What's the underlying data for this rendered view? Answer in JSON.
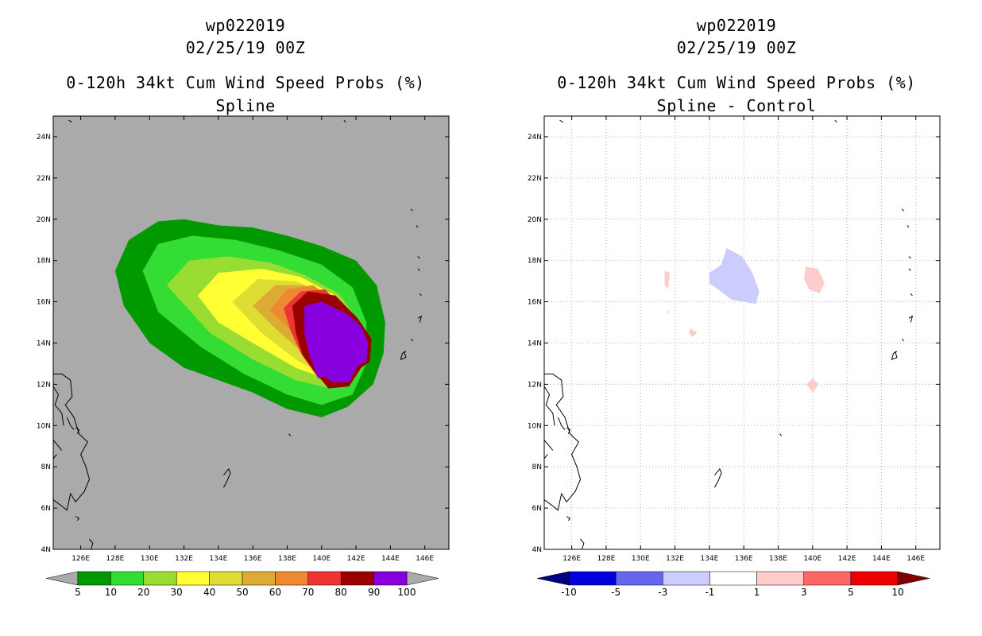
{
  "chart_data": [
    {
      "type": "heatmap",
      "id": "left",
      "title": "wp022019",
      "subtitle": "02/25/19 00Z",
      "chart_title": "0-120h 34kt Cum Wind Speed Probs (%)",
      "chart_subtitle": "Spline",
      "xlabel": "",
      "ylabel": "",
      "xlim": [
        124.4,
        147.4
      ],
      "ylim": [
        4,
        25
      ],
      "background": "#aaaaaa",
      "grid": false,
      "x_ticks": [
        126,
        128,
        130,
        132,
        134,
        136,
        138,
        140,
        142,
        144,
        146
      ],
      "x_tick_labels": [
        "126E",
        "128E",
        "130E",
        "132E",
        "134E",
        "136E",
        "138E",
        "140E",
        "142E",
        "144E",
        "146E"
      ],
      "y_ticks": [
        4,
        6,
        8,
        10,
        12,
        14,
        16,
        18,
        20,
        22,
        24
      ],
      "y_tick_labels": [
        "4N",
        "6N",
        "8N",
        "10N",
        "12N",
        "14N",
        "16N",
        "18N",
        "20N",
        "22N",
        "24N"
      ],
      "colorbar": {
        "levels": [
          "5",
          "10",
          "20",
          "30",
          "40",
          "50",
          "60",
          "70",
          "80",
          "90",
          "100"
        ],
        "colors": [
          "#009900",
          "#33dd33",
          "#99dd33",
          "#ffff33",
          "#dddd33",
          "#ddaa33",
          "#ee8833",
          "#ee3333",
          "#990000",
          "#8800dd"
        ],
        "under_color": "#aaaaaa",
        "over_color": "#aaaaaa"
      },
      "shapes": [
        {
          "level": "5",
          "color": "#009900",
          "points": [
            [
              128.0,
              17.5
            ],
            [
              128.8,
              19.0
            ],
            [
              130.5,
              19.9
            ],
            [
              132.0,
              20.0
            ],
            [
              134.0,
              19.7
            ],
            [
              136.0,
              19.6
            ],
            [
              138.0,
              19.2
            ],
            [
              140.0,
              18.7
            ],
            [
              142.0,
              18.0
            ],
            [
              143.2,
              16.8
            ],
            [
              143.7,
              15.0
            ],
            [
              143.6,
              13.5
            ],
            [
              143.0,
              12.0
            ],
            [
              141.5,
              10.9
            ],
            [
              140.0,
              10.4
            ],
            [
              138.0,
              10.8
            ],
            [
              136.0,
              11.6
            ],
            [
              134.0,
              12.2
            ],
            [
              132.0,
              12.8
            ],
            [
              130.0,
              14.0
            ],
            [
              128.5,
              15.8
            ]
          ]
        },
        {
          "level": "10",
          "color": "#33dd33",
          "points": [
            [
              129.6,
              17.5
            ],
            [
              130.5,
              18.8
            ],
            [
              132.5,
              19.2
            ],
            [
              135.0,
              19.0
            ],
            [
              137.5,
              18.5
            ],
            [
              140.0,
              17.8
            ],
            [
              141.8,
              16.7
            ],
            [
              142.6,
              15.0
            ],
            [
              142.6,
              13.0
            ],
            [
              141.8,
              11.5
            ],
            [
              140.0,
              11.0
            ],
            [
              138.0,
              11.5
            ],
            [
              135.5,
              12.5
            ],
            [
              133.0,
              13.8
            ],
            [
              130.5,
              15.5
            ]
          ]
        },
        {
          "level": "20",
          "color": "#99dd33",
          "points": [
            [
              131.0,
              16.8
            ],
            [
              132.3,
              18.0
            ],
            [
              134.5,
              18.2
            ],
            [
              137.0,
              17.9
            ],
            [
              139.0,
              17.3
            ],
            [
              141.0,
              16.4
            ],
            [
              142.2,
              15.0
            ],
            [
              142.0,
              13.0
            ],
            [
              140.5,
              11.8
            ],
            [
              138.5,
              12.2
            ],
            [
              136.0,
              13.2
            ],
            [
              133.5,
              14.5
            ]
          ]
        },
        {
          "level": "30",
          "color": "#ffff33",
          "points": [
            [
              132.8,
              16.3
            ],
            [
              134.0,
              17.4
            ],
            [
              136.5,
              17.6
            ],
            [
              138.8,
              17.2
            ],
            [
              140.8,
              16.3
            ],
            [
              142.0,
              15.0
            ],
            [
              141.8,
              13.0
            ],
            [
              140.5,
              12.2
            ],
            [
              138.5,
              12.8
            ],
            [
              136.0,
              14.0
            ],
            [
              134.0,
              15.0
            ]
          ]
        },
        {
          "level": "40",
          "color": "#dddd33",
          "points": [
            [
              134.8,
              16.0
            ],
            [
              136.3,
              17.1
            ],
            [
              138.5,
              17.0
            ],
            [
              140.5,
              16.2
            ],
            [
              141.8,
              15.0
            ],
            [
              141.6,
              13.0
            ],
            [
              140.3,
              12.4
            ],
            [
              138.5,
              13.2
            ],
            [
              136.5,
              14.5
            ]
          ]
        },
        {
          "level": "50",
          "color": "#ddaa33",
          "points": [
            [
              136.0,
              15.8
            ],
            [
              137.3,
              16.8
            ],
            [
              139.0,
              16.8
            ],
            [
              140.8,
              16.0
            ],
            [
              141.8,
              15.0
            ],
            [
              141.6,
              13.0
            ],
            [
              140.3,
              12.5
            ],
            [
              138.8,
              13.6
            ],
            [
              137.2,
              14.8
            ]
          ]
        },
        {
          "level": "60",
          "color": "#ee8833",
          "points": [
            [
              137.0,
              15.6
            ],
            [
              138.0,
              16.6
            ],
            [
              139.5,
              16.8
            ],
            [
              141.0,
              15.9
            ],
            [
              141.9,
              14.8
            ],
            [
              141.7,
              13.0
            ],
            [
              140.5,
              12.3
            ],
            [
              139.2,
              13.6
            ],
            [
              138.0,
              14.8
            ]
          ]
        },
        {
          "level": "70",
          "color": "#ee3333",
          "points": [
            [
              137.8,
              15.7
            ],
            [
              138.8,
              16.5
            ],
            [
              140.2,
              16.6
            ],
            [
              141.4,
              15.6
            ],
            [
              142.3,
              14.8
            ],
            [
              142.0,
              13.1
            ],
            [
              141.0,
              12.0
            ],
            [
              139.8,
              12.3
            ],
            [
              138.8,
              13.5
            ],
            [
              138.2,
              14.6
            ]
          ]
        },
        {
          "level": "80",
          "color": "#990000",
          "points": [
            [
              138.3,
              15.8
            ],
            [
              139.2,
              16.5
            ],
            [
              140.8,
              16.3
            ],
            [
              142.1,
              15.2
            ],
            [
              142.9,
              14.2
            ],
            [
              142.8,
              13.1
            ],
            [
              142.3,
              12.8
            ],
            [
              141.6,
              11.9
            ],
            [
              140.4,
              11.8
            ],
            [
              139.6,
              12.6
            ],
            [
              138.9,
              13.4
            ],
            [
              138.5,
              14.5
            ]
          ]
        },
        {
          "level": "90",
          "color": "#8800dd",
          "points": [
            [
              139.0,
              15.8
            ],
            [
              140.0,
              16.0
            ],
            [
              141.5,
              15.4
            ],
            [
              142.3,
              14.8
            ],
            [
              142.7,
              14.0
            ],
            [
              142.6,
              13.1
            ],
            [
              142.1,
              12.9
            ],
            [
              141.6,
              12.1
            ],
            [
              140.6,
              12.1
            ],
            [
              140.2,
              12.4
            ],
            [
              139.8,
              12.3
            ],
            [
              139.3,
              13.4
            ],
            [
              139.0,
              14.5
            ]
          ]
        }
      ]
    },
    {
      "type": "heatmap",
      "id": "right",
      "title": "wp022019",
      "subtitle": "02/25/19 00Z",
      "chart_title": "0-120h 34kt Cum Wind Speed Probs (%)",
      "chart_subtitle": "Spline - Control",
      "xlabel": "",
      "ylabel": "",
      "xlim": [
        124.4,
        147.4
      ],
      "ylim": [
        4,
        25
      ],
      "background": "#ffffff",
      "grid": true,
      "x_ticks": [
        126,
        128,
        130,
        132,
        134,
        136,
        138,
        140,
        142,
        144,
        146
      ],
      "x_tick_labels": [
        "126E",
        "128E",
        "130E",
        "132E",
        "134E",
        "136E",
        "138E",
        "140E",
        "142E",
        "144E",
        "146E"
      ],
      "y_ticks": [
        4,
        6,
        8,
        10,
        12,
        14,
        16,
        18,
        20,
        22,
        24
      ],
      "y_tick_labels": [
        "4N",
        "6N",
        "8N",
        "10N",
        "12N",
        "14N",
        "16N",
        "18N",
        "20N",
        "22N",
        "24N"
      ],
      "colorbar": {
        "levels": [
          "-10",
          "-5",
          "-3",
          "-1",
          "1",
          "3",
          "5",
          "10"
        ],
        "colors": [
          "#0000dd",
          "#6666ee",
          "#ccccff",
          "#ffffff",
          "#ffcccc",
          "#ff6666",
          "#ee0000"
        ],
        "under_color": "#000080",
        "over_color": "#800000"
      },
      "shapes": [
        {
          "level": "-3 to -1",
          "color": "#ccccff",
          "points": [
            [
              134.0,
              17.4
            ],
            [
              134.7,
              17.8
            ],
            [
              135.0,
              18.6
            ],
            [
              135.9,
              18.2
            ],
            [
              136.5,
              17.4
            ],
            [
              136.9,
              16.5
            ],
            [
              136.7,
              15.9
            ],
            [
              135.3,
              16.1
            ],
            [
              134.5,
              16.6
            ],
            [
              134.0,
              16.9
            ]
          ]
        },
        {
          "level": "1 to 3",
          "color": "#ffcccc",
          "points": [
            [
              139.6,
              17.7
            ],
            [
              140.3,
              17.6
            ],
            [
              140.7,
              16.9
            ],
            [
              140.4,
              16.4
            ],
            [
              139.8,
              16.6
            ],
            [
              139.5,
              17.1
            ]
          ]
        },
        {
          "level": "1 to 3",
          "color": "#ffcccc",
          "points": [
            [
              131.4,
              17.5
            ],
            [
              131.7,
              17.4
            ],
            [
              131.6,
              16.6
            ],
            [
              131.4,
              16.8
            ]
          ]
        },
        {
          "level": "1 to 3",
          "color": "#ffcccc",
          "points": [
            [
              132.9,
              14.7
            ],
            [
              133.3,
              14.5
            ],
            [
              133.0,
              14.3
            ],
            [
              132.8,
              14.5
            ]
          ]
        },
        {
          "level": "1 to 3",
          "color": "#ffcccc",
          "points": [
            [
              140.0,
              12.3
            ],
            [
              140.35,
              12.0
            ],
            [
              140.0,
              11.6
            ],
            [
              139.65,
              12.0
            ]
          ]
        },
        {
          "level": "1 to 3",
          "color": "#ffcccc",
          "points": [
            [
              131.6,
              15.6
            ],
            [
              131.7,
              15.5
            ],
            [
              131.6,
              15.4
            ]
          ]
        }
      ]
    }
  ],
  "coastlines": [
    [
      [
        124.4,
        12.5
      ],
      [
        124.9,
        12.5
      ],
      [
        125.4,
        12.2
      ],
      [
        125.5,
        11.4
      ],
      [
        125.1,
        11.0
      ],
      [
        125.6,
        10.4
      ],
      [
        125.9,
        9.6
      ],
      [
        126.4,
        9.2
      ],
      [
        126.0,
        8.6
      ],
      [
        126.3,
        8.0
      ],
      [
        126.5,
        7.4
      ],
      [
        126.2,
        6.8
      ],
      [
        125.7,
        6.3
      ],
      [
        125.4,
        6.7
      ],
      [
        125.2,
        5.9
      ],
      [
        124.9,
        6.1
      ],
      [
        124.4,
        6.4
      ]
    ],
    [
      [
        124.4,
        11.9
      ],
      [
        124.7,
        11.5
      ],
      [
        124.5,
        11.0
      ],
      [
        124.9,
        10.6
      ],
      [
        125.0,
        10.0
      ]
    ],
    [
      [
        125.2,
        10.4
      ],
      [
        125.4,
        10.0
      ],
      [
        125.6,
        9.8
      ]
    ],
    [
      [
        125.7,
        9.9
      ],
      [
        125.9,
        9.8
      ],
      [
        125.8,
        9.6
      ]
    ],
    [
      [
        124.4,
        9.3
      ],
      [
        124.7,
        9.0
      ],
      [
        124.9,
        8.8
      ]
    ],
    [
      [
        126.5,
        4.5
      ],
      [
        126.7,
        4.3
      ],
      [
        126.6,
        4.0
      ]
    ],
    [
      [
        124.4,
        8.4
      ],
      [
        124.6,
        8.6
      ]
    ],
    [
      [
        125.7,
        5.6
      ],
      [
        125.9,
        5.5
      ],
      [
        125.8,
        5.4
      ]
    ],
    [
      [
        134.3,
        7.6
      ],
      [
        134.6,
        7.9
      ],
      [
        134.7,
        7.7
      ],
      [
        134.5,
        7.3
      ],
      [
        134.3,
        7.0
      ]
    ],
    [
      [
        138.1,
        9.6
      ],
      [
        138.2,
        9.5
      ]
    ],
    [
      [
        144.8,
        13.6
      ],
      [
        144.9,
        13.3
      ],
      [
        144.6,
        13.2
      ],
      [
        144.7,
        13.5
      ],
      [
        144.9,
        13.6
      ]
    ],
    [
      [
        145.2,
        14.2
      ],
      [
        145.3,
        14.1
      ]
    ],
    [
      [
        145.6,
        15.2
      ],
      [
        145.8,
        15.3
      ],
      [
        145.7,
        15.0
      ]
    ],
    [
      [
        145.7,
        16.4
      ],
      [
        145.8,
        16.3
      ]
    ],
    [
      [
        145.6,
        17.6
      ],
      [
        145.7,
        17.5
      ]
    ],
    [
      [
        145.6,
        18.2
      ],
      [
        145.7,
        18.1
      ]
    ],
    [
      [
        145.2,
        20.5
      ],
      [
        145.3,
        20.4
      ]
    ],
    [
      [
        145.5,
        19.7
      ],
      [
        145.6,
        19.6
      ]
    ],
    [
      [
        125.3,
        24.8
      ],
      [
        125.5,
        24.7
      ]
    ],
    [
      [
        141.3,
        24.8
      ],
      [
        141.4,
        24.7
      ]
    ]
  ]
}
